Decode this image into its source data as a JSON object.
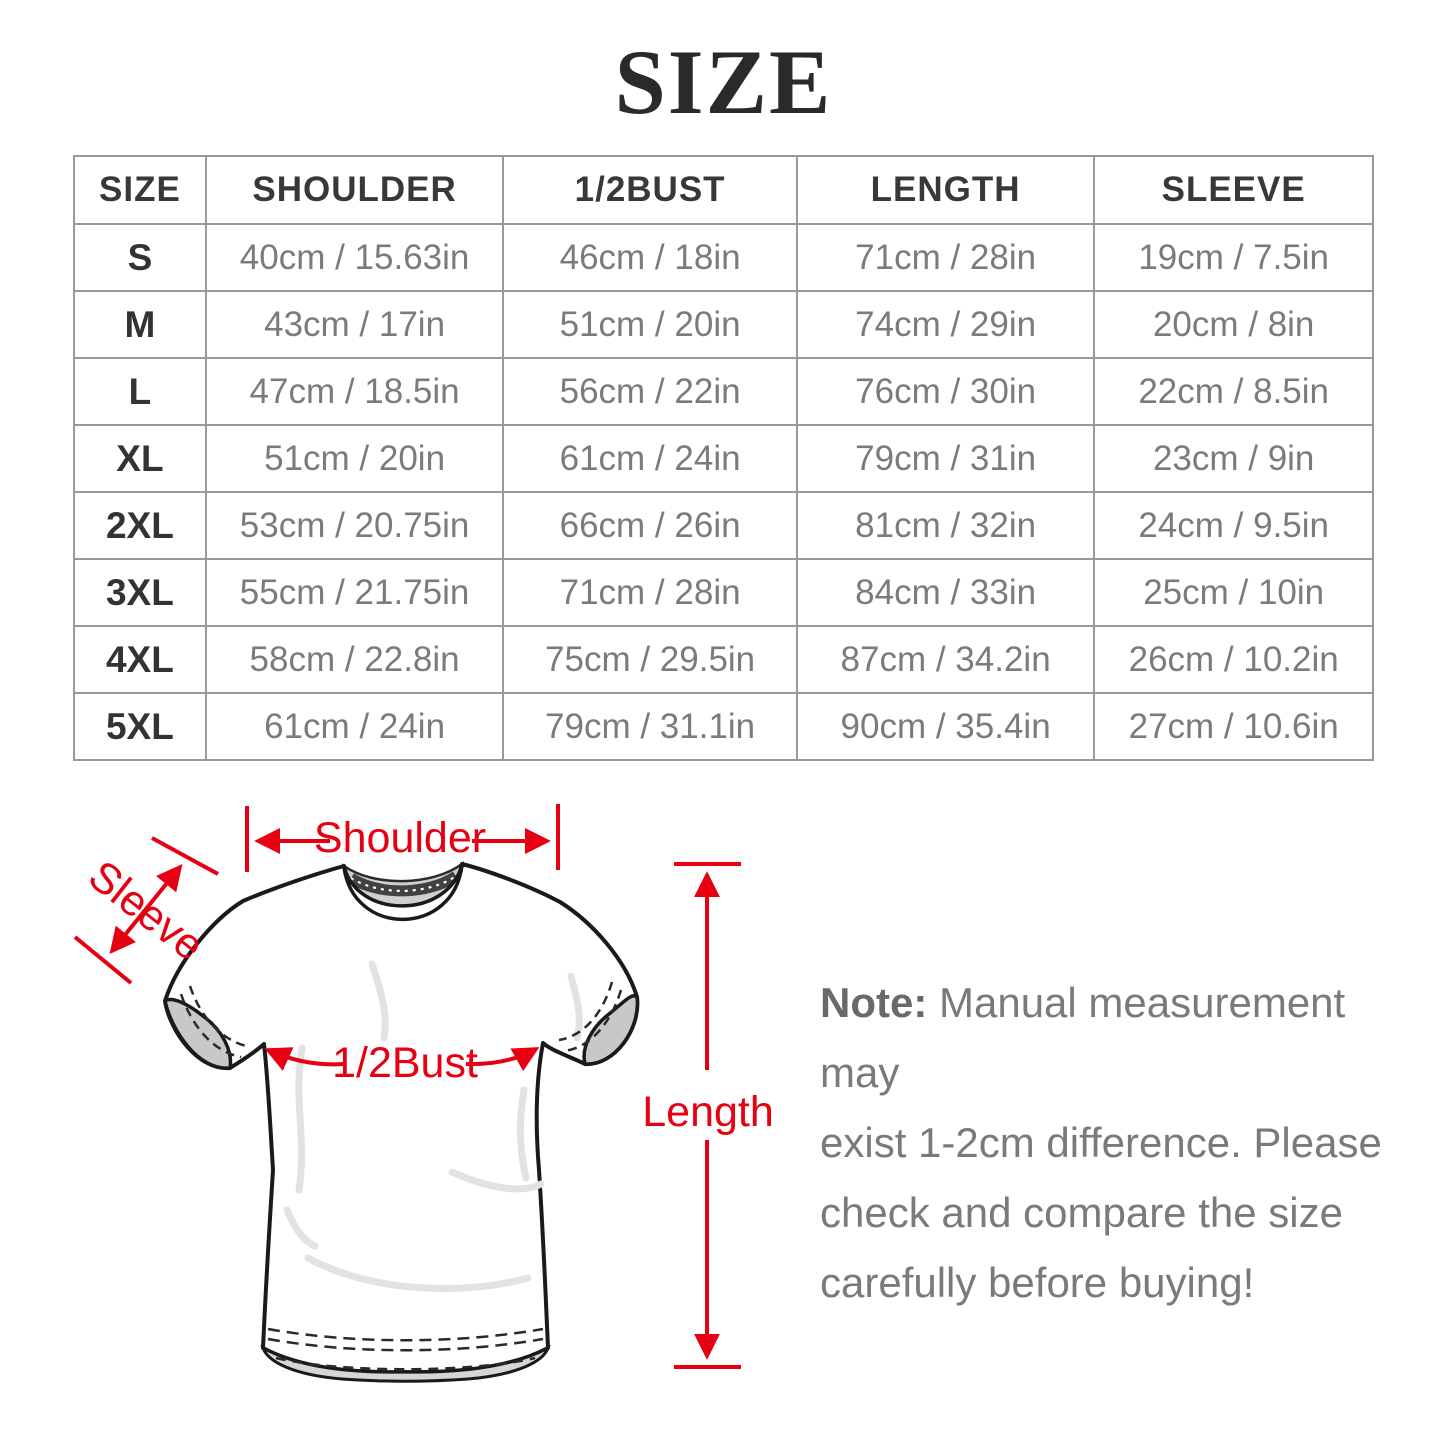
{
  "title": "SIZE",
  "table": {
    "headers": [
      "SIZE",
      "SHOULDER",
      "1/2BUST",
      "LENGTH",
      "SLEEVE"
    ],
    "rows": [
      [
        "S",
        "40cm / 15.63in",
        "46cm / 18in",
        "71cm / 28in",
        "19cm / 7.5in"
      ],
      [
        "M",
        "43cm / 17in",
        "51cm / 20in",
        "74cm / 29in",
        "20cm / 8in"
      ],
      [
        "L",
        "47cm / 18.5in",
        "56cm / 22in",
        "76cm / 30in",
        "22cm / 8.5in"
      ],
      [
        "XL",
        "51cm / 20in",
        "61cm / 24in",
        "79cm / 31in",
        "23cm / 9in"
      ],
      [
        "2XL",
        "53cm / 20.75in",
        "66cm / 26in",
        "81cm / 32in",
        "24cm / 9.5in"
      ],
      [
        "3XL",
        "55cm / 21.75in",
        "71cm / 28in",
        "84cm / 33in",
        "25cm / 10in"
      ],
      [
        "4XL",
        "58cm / 22.8in",
        "75cm / 29.5in",
        "87cm / 34.2in",
        "26cm / 10.2in"
      ],
      [
        "5XL",
        "61cm / 24in",
        "79cm / 31.1in",
        "90cm / 35.4in",
        "27cm / 10.6in"
      ]
    ]
  },
  "diagram": {
    "accent_color": "#e60012",
    "labels": {
      "shoulder": "Shoulder",
      "sleeve": "Sleeve",
      "half_bust": "1/2Bust",
      "length": "Length"
    }
  },
  "note": {
    "prefix": "Note:",
    "lines": [
      "Manual measurement may",
      "exist 1-2cm difference. Please",
      "check and compare the size",
      "carefully before buying!"
    ]
  }
}
